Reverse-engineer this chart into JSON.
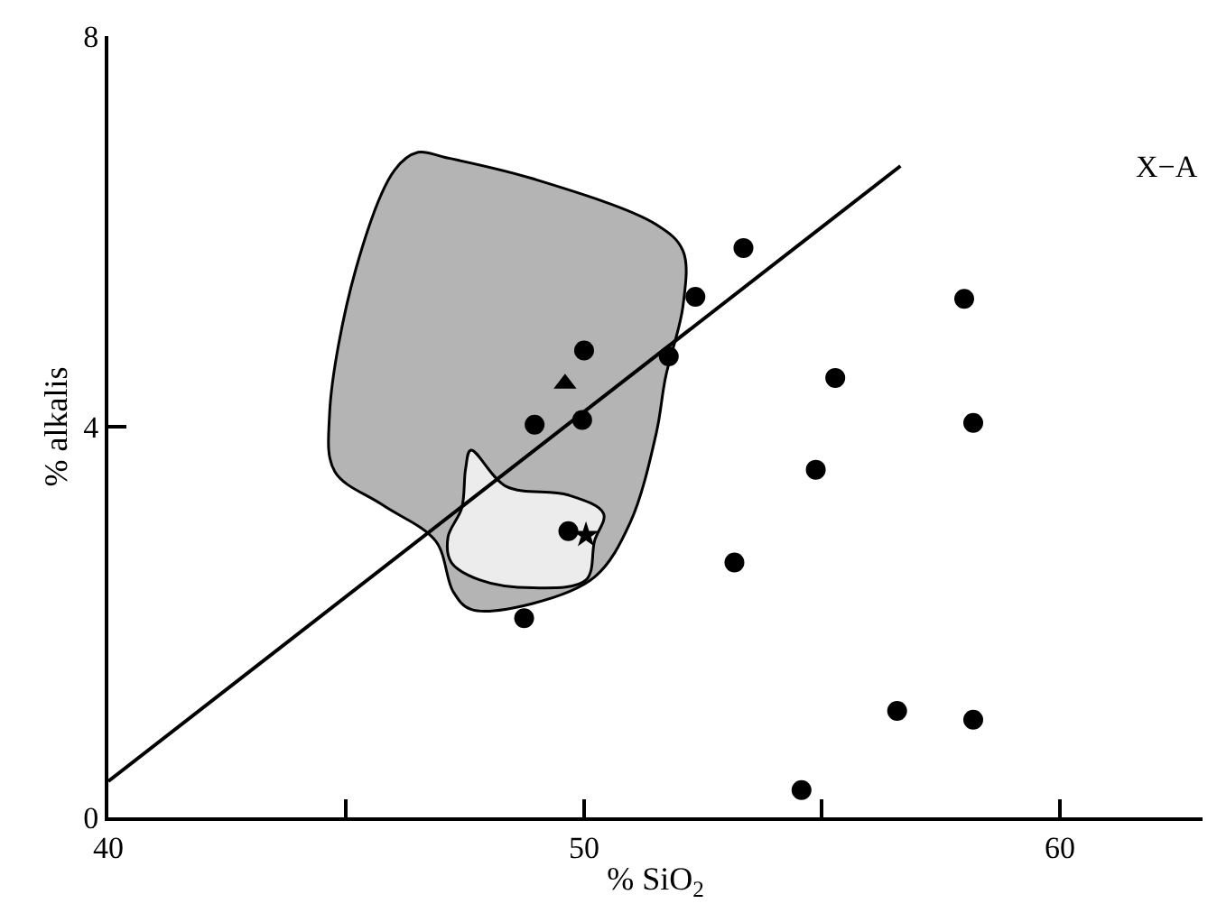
{
  "chart_data": {
    "type": "scatter",
    "xlabel": "% SiO$_{2}$",
    "ylabel": "% alkalis",
    "annotations": [
      "X−A"
    ],
    "xlim": [
      40,
      63
    ],
    "ylim": [
      0,
      8
    ],
    "xticks": [
      40,
      {
        "value": 45,
        "label": null
      },
      50,
      {
        "value": 55,
        "label": null
      },
      60
    ],
    "yticks": [
      0,
      4,
      8
    ],
    "series": [
      {
        "type": "area",
        "color": "#b4b4b4",
        "x": [
          46.51,
          47.06,
          48.92,
          51.52,
          52.08,
          52.08,
          51.71,
          51.52,
          50.97,
          50.22,
          48.92,
          47.62,
          47.25,
          46.88,
          45.76,
          44.76,
          44.65,
          45.2,
          46.02
        ],
        "values": [
          6.81,
          6.76,
          6.54,
          6.07,
          5.8,
          5.24,
          4.5,
          3.94,
          3.02,
          2.46,
          2.19,
          2.13,
          2.31,
          2.83,
          3.2,
          3.54,
          4.13,
          5.61,
          6.63
        ]
      },
      {
        "type": "area",
        "color": "#ececec",
        "x": [
          47.62,
          48.36,
          49.67,
          50.41,
          50.22,
          50.04,
          48.92,
          47.81,
          47.21,
          47.14,
          47.43,
          47.51
        ],
        "values": [
          3.76,
          3.39,
          3.3,
          3.11,
          2.83,
          2.43,
          2.35,
          2.43,
          2.61,
          2.87,
          3.17,
          3.57
        ]
      },
      {
        "type": "line",
        "color": "#000000",
        "marker": "none",
        "line_style": "solid",
        "x": [
          40,
          56.65
        ],
        "values": [
          0.37,
          6.67
        ]
      },
      {
        "color": "#000000",
        "marker": "circle",
        "x": [
          50.0,
          48.96,
          49.96,
          51.78,
          52.34,
          53.35,
          55.28,
          54.87,
          53.16,
          57.99,
          58.18,
          49.67,
          48.74,
          56.58,
          58.18,
          54.57
        ],
        "values": [
          4.78,
          4.02,
          4.07,
          4.72,
          5.33,
          5.83,
          4.5,
          3.56,
          2.61,
          5.31,
          4.04,
          2.93,
          2.04,
          1.09,
          1.0,
          0.28
        ]
      },
      {
        "color": "#000000",
        "marker": "triangle",
        "x": [
          49.6
        ],
        "values": [
          4.44
        ]
      },
      {
        "color": "#000000",
        "marker": "star",
        "x": [
          50.04
        ],
        "values": [
          2.89
        ]
      }
    ]
  }
}
